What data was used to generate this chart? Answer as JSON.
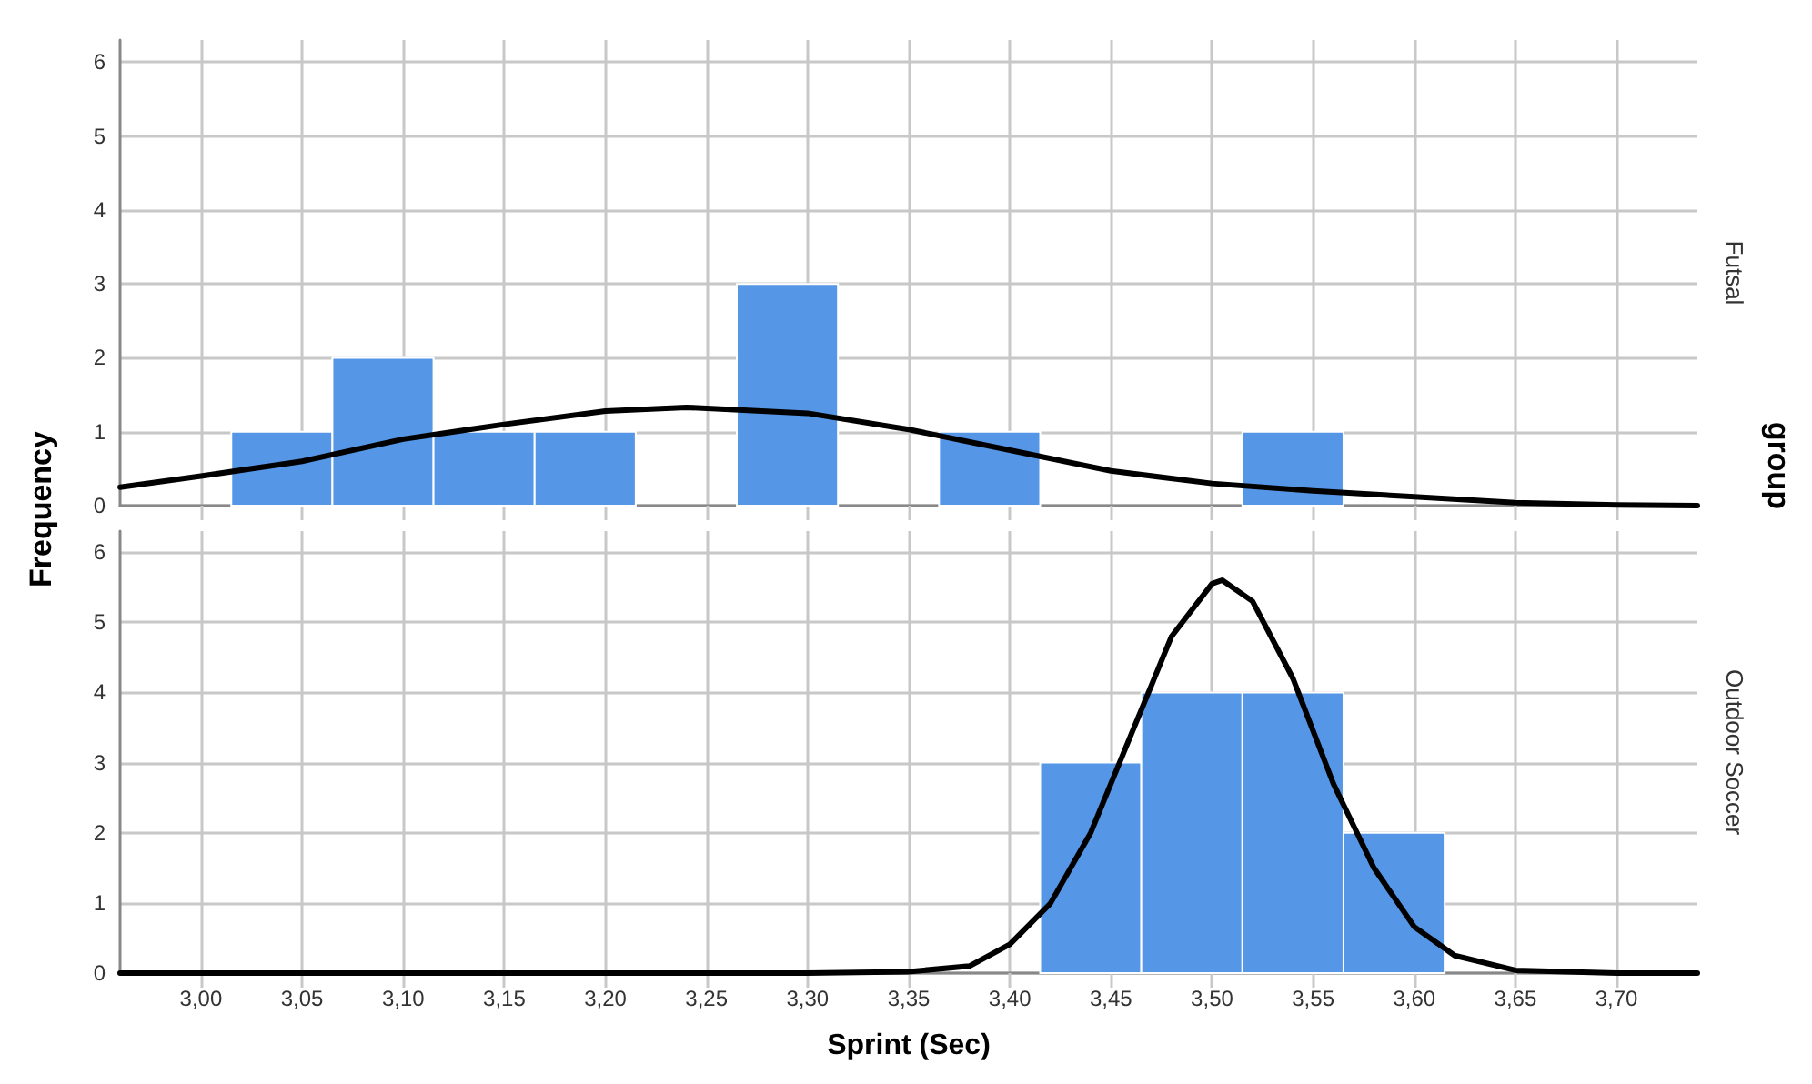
{
  "chart_data": [
    {
      "type": "histogram",
      "y2label": "Futsal",
      "ylabel": "Frequency",
      "annotations": [
        "group"
      ],
      "bins": [
        3.015,
        3.065,
        3.115,
        3.165,
        3.215,
        3.265,
        3.315,
        3.365,
        3.415,
        3.465,
        3.515,
        3.565
      ],
      "values": [
        1,
        2,
        1,
        1,
        0,
        3,
        0,
        1,
        0,
        0,
        1
      ],
      "color": "#5596e6",
      "series": [
        {
          "type": "line",
          "color": "#000000",
          "x": [
            2.96,
            3.0,
            3.05,
            3.1,
            3.15,
            3.2,
            3.24,
            3.3,
            3.35,
            3.4,
            3.45,
            3.5,
            3.55,
            3.6,
            3.65,
            3.7,
            3.74
          ],
          "values": [
            0.25,
            0.4,
            0.6,
            0.9,
            1.1,
            1.28,
            1.33,
            1.25,
            1.03,
            0.75,
            0.47,
            0.3,
            0.2,
            0.12,
            0.04,
            0.01,
            0.0
          ]
        }
      ],
      "xlim": [
        2.96,
        3.74
      ],
      "ylim": [
        0,
        6.3
      ],
      "yticks": [
        0,
        1,
        2,
        3,
        4,
        5,
        6
      ],
      "xticks": [
        3.0,
        3.05,
        3.1,
        3.15,
        3.2,
        3.25,
        3.3,
        3.35,
        3.4,
        3.45,
        3.5,
        3.55,
        3.6,
        3.65,
        3.7
      ],
      "grid": true,
      "tick_labels": "y",
      "line_style": "solid",
      "marker": "none"
    },
    {
      "type": "histogram",
      "y2label": "Outdoor Soccer",
      "xlabel": "Sprint (Sec)",
      "bins": [
        3.415,
        3.465,
        3.515,
        3.565,
        3.615
      ],
      "values": [
        3,
        4,
        4,
        2
      ],
      "color": "#5596e6",
      "series": [
        {
          "type": "line",
          "color": "#000000",
          "x": [
            2.96,
            3.3,
            3.35,
            3.38,
            3.4,
            3.42,
            3.44,
            3.46,
            3.48,
            3.5,
            3.505,
            3.52,
            3.54,
            3.56,
            3.58,
            3.6,
            3.62,
            3.65,
            3.7,
            3.74
          ],
          "values": [
            0,
            0,
            0.02,
            0.1,
            0.41,
            0.99,
            2.0,
            3.4,
            4.8,
            5.55,
            5.6,
            5.3,
            4.2,
            2.7,
            1.5,
            0.66,
            0.25,
            0.04,
            0,
            0
          ]
        }
      ],
      "xlim": [
        2.96,
        3.74
      ],
      "ylim": [
        0,
        6.3
      ],
      "yticks": [
        0,
        1,
        2,
        3,
        4,
        5,
        6
      ],
      "xticks": [
        {
          "value": 3.0,
          "label": "3,00"
        },
        {
          "value": 3.05,
          "label": "3,05"
        },
        {
          "value": 3.1,
          "label": "3,10"
        },
        {
          "value": 3.15,
          "label": "3,15"
        },
        {
          "value": 3.2,
          "label": "3,20"
        },
        {
          "value": 3.25,
          "label": "3,25"
        },
        {
          "value": 3.3,
          "label": "3,30"
        },
        {
          "value": 3.35,
          "label": "3,35"
        },
        {
          "value": 3.4,
          "label": "3,40"
        },
        {
          "value": 3.45,
          "label": "3,45"
        },
        {
          "value": 3.5,
          "label": "3,50"
        },
        {
          "value": 3.55,
          "label": "3,55"
        },
        {
          "value": 3.6,
          "label": "3,60"
        },
        {
          "value": 3.65,
          "label": "3,65"
        },
        {
          "value": 3.7,
          "label": "3,70"
        }
      ],
      "grid": true,
      "line_style": "solid",
      "marker": "none"
    }
  ]
}
